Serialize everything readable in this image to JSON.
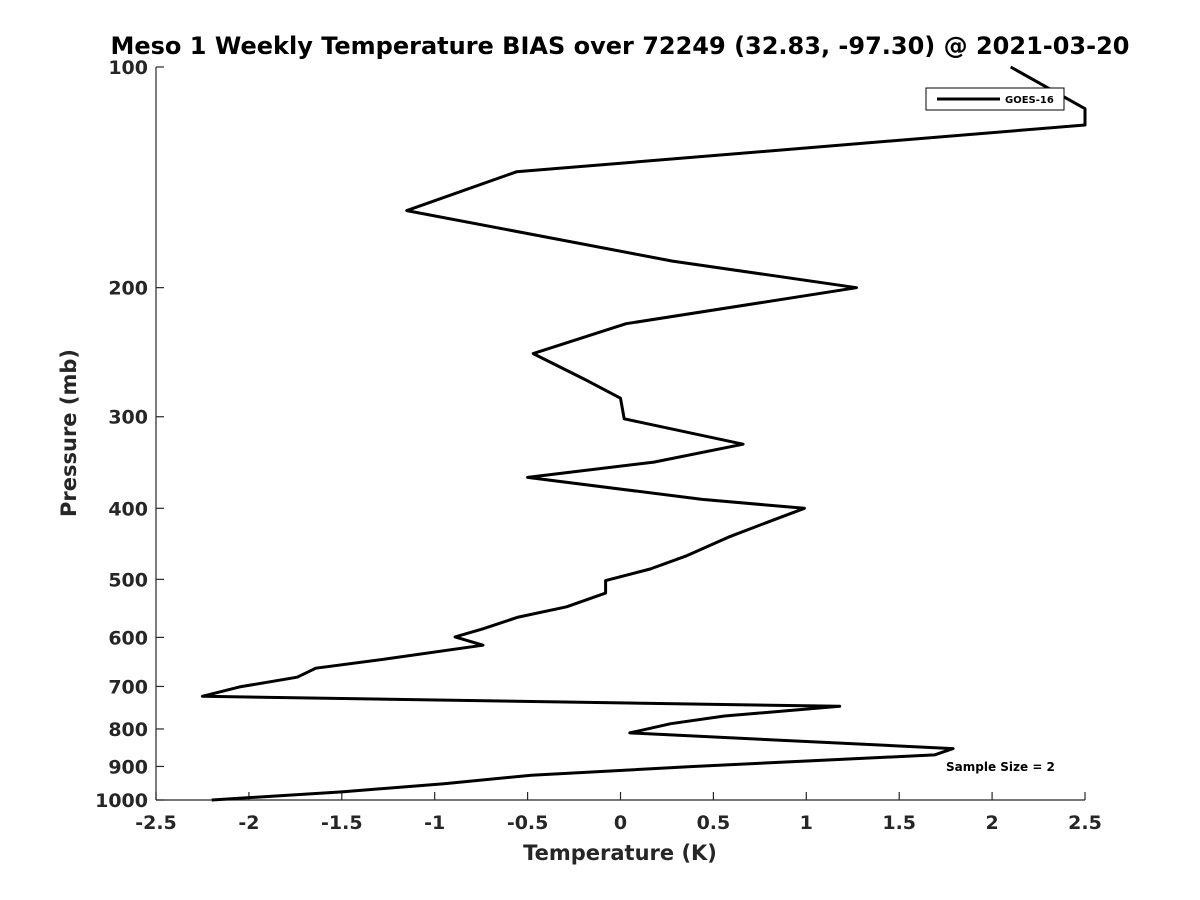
{
  "chart_data": {
    "type": "line",
    "title": "Meso 1 Weekly Temperature BIAS over 72249 (32.83, -97.30) @ 2021-03-20",
    "xlabel": "Temperature (K)",
    "ylabel": "Pressure (mb)",
    "xlim": [
      -2.5,
      2.5
    ],
    "ylim": [
      100,
      1000
    ],
    "y_scale": "log",
    "y_reversed": true,
    "grid": false,
    "legend_position": "top-right",
    "x_ticks": [
      "-2.5",
      "-2",
      "-1.5",
      "-1",
      "-0.5",
      "0",
      "0.5",
      "1",
      "1.5",
      "2",
      "2.5"
    ],
    "x_tick_values": [
      -2.5,
      -2,
      -1.5,
      -1,
      -0.5,
      0,
      0.5,
      1,
      1.5,
      2,
      2.5
    ],
    "y_ticks": [
      "100",
      "200",
      "300",
      "400",
      "500",
      "600",
      "700",
      "800",
      "900",
      "1000"
    ],
    "y_tick_values": [
      100,
      200,
      300,
      400,
      500,
      600,
      700,
      800,
      900,
      1000
    ],
    "annotation": "Sample Size = 2",
    "series": [
      {
        "name": "GOES-16",
        "color": "#000000",
        "points": [
          [
            2.1,
            100
          ],
          [
            2.5,
            114
          ],
          [
            2.5,
            120
          ],
          [
            -0.56,
            139
          ],
          [
            -1.15,
            157
          ],
          [
            0.28,
            184
          ],
          [
            1.27,
            200
          ],
          [
            0.03,
            224
          ],
          [
            -0.47,
            246
          ],
          [
            -0.19,
            267
          ],
          [
            0.0,
            283
          ],
          [
            0.02,
            302
          ],
          [
            0.66,
            327
          ],
          [
            0.18,
            346
          ],
          [
            -0.5,
            363
          ],
          [
            0.44,
            389
          ],
          [
            0.99,
            400
          ],
          [
            0.79,
            418
          ],
          [
            0.58,
            438
          ],
          [
            0.35,
            465
          ],
          [
            0.16,
            484
          ],
          [
            -0.08,
            502
          ],
          [
            -0.08,
            522
          ],
          [
            -0.29,
            545
          ],
          [
            -0.55,
            563
          ],
          [
            -0.74,
            584
          ],
          [
            -0.89,
            599
          ],
          [
            -0.74,
            615
          ],
          [
            -1.26,
            642
          ],
          [
            -1.64,
            661
          ],
          [
            -1.74,
            680
          ],
          [
            -2.05,
            701
          ],
          [
            -2.25,
            722
          ],
          [
            1.18,
            745
          ],
          [
            0.56,
            768
          ],
          [
            0.27,
            787
          ],
          [
            0.05,
            810
          ],
          [
            1.79,
            851
          ],
          [
            1.69,
            868
          ],
          [
            0.39,
            900
          ],
          [
            -0.48,
            925
          ],
          [
            -0.95,
            950
          ],
          [
            -1.5,
            975
          ],
          [
            -2.2,
            1000
          ]
        ]
      }
    ]
  }
}
